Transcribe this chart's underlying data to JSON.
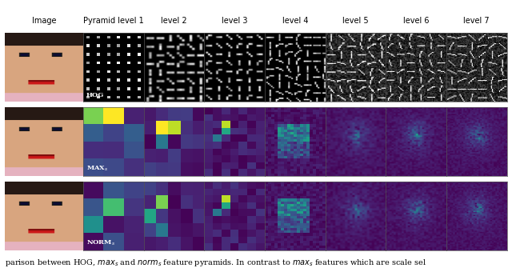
{
  "title_row": [
    "Image",
    "Pyramid level 1",
    "level 2",
    "level 3",
    "level 4",
    "level 5",
    "level 6",
    "level 7"
  ],
  "row_labels": [
    "HOG",
    "MAX_s",
    "NORM_s"
  ],
  "caption_parts": [
    {
      "text": "parison between HOG, ",
      "style": "normal"
    },
    {
      "text": "max",
      "style": "italic"
    },
    {
      "text": "s",
      "style": "italic_sub"
    },
    {
      "text": " and ",
      "style": "normal"
    },
    {
      "text": "norm",
      "style": "italic"
    },
    {
      "text": "s",
      "style": "italic_sub"
    },
    {
      "text": " feature pyramids. In contrast to ",
      "style": "normal"
    },
    {
      "text": "max",
      "style": "italic"
    },
    {
      "text": "s",
      "style": "italic_sub"
    },
    {
      "text": " features which are scale sel",
      "style": "normal"
    }
  ],
  "bg_color": "#ffffff",
  "header_fontsize": 7,
  "label_fontsize": 6,
  "caption_fontsize": 7,
  "fig_width": 6.4,
  "fig_height": 3.4
}
